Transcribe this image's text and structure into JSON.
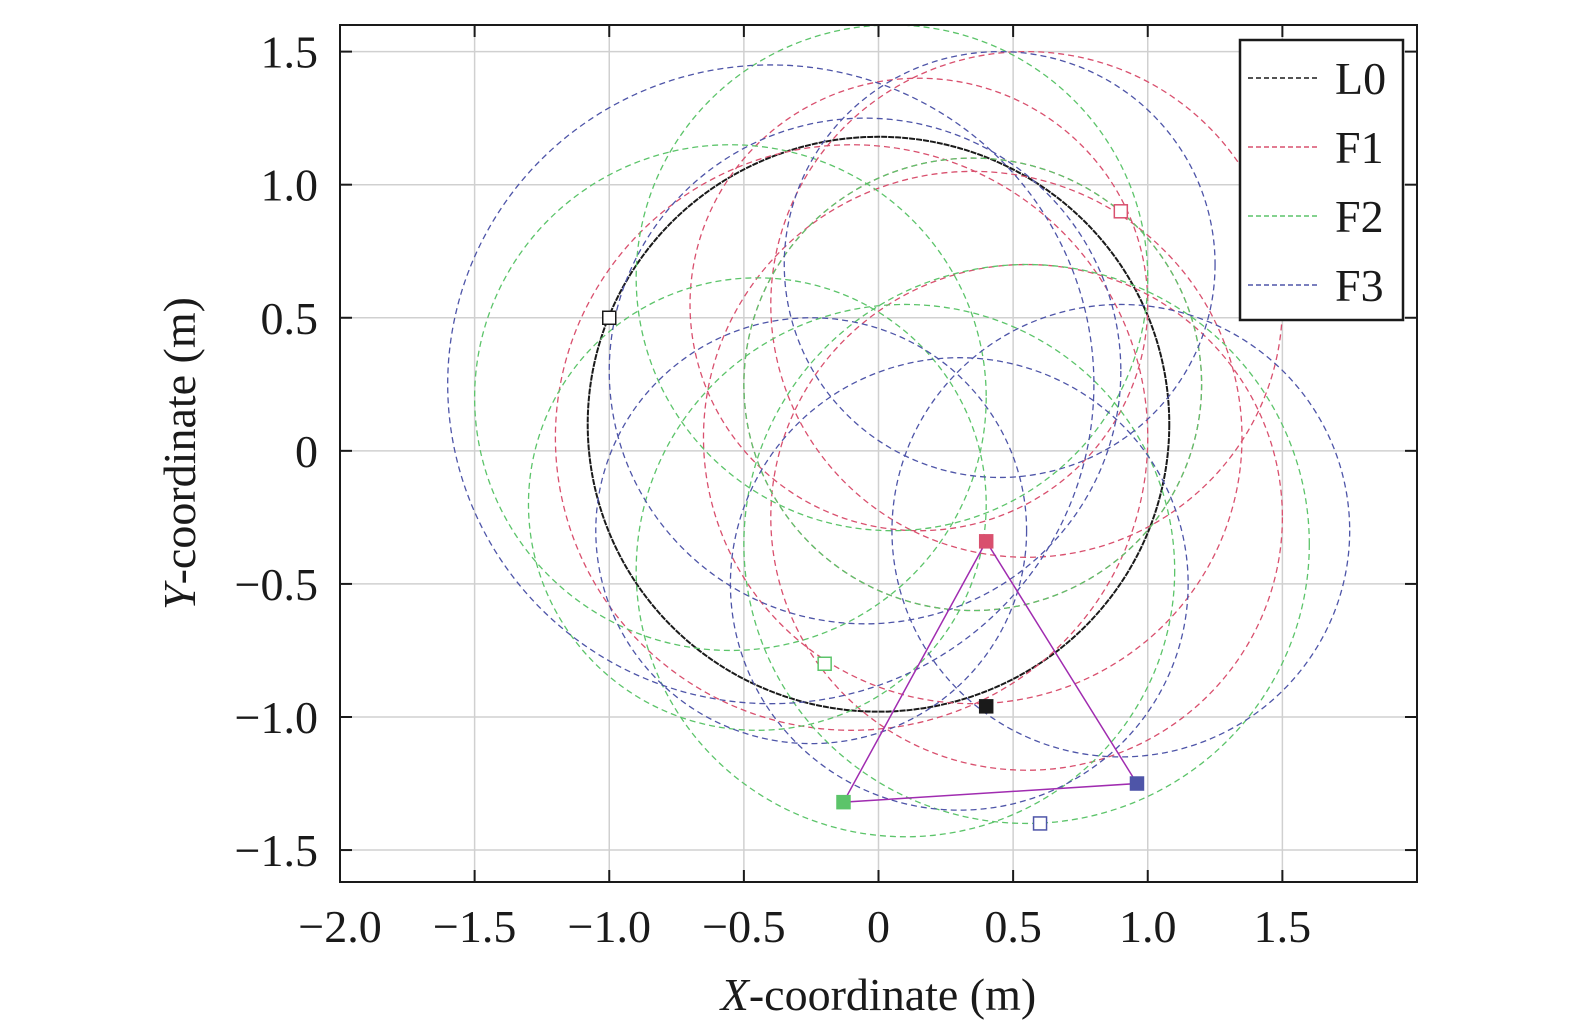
{
  "chart_data": {
    "type": "line",
    "title": "",
    "xlabel": {
      "italic": "X",
      "rest": "-coordinate (m)"
    },
    "ylabel": {
      "italic": "Y",
      "rest": "-coordinate (m)"
    },
    "xlim": [
      -2.0,
      2.0
    ],
    "ylim": [
      -1.62,
      1.6
    ],
    "x_ticks": [
      -2.0,
      -1.5,
      -1.0,
      -0.5,
      0,
      0.5,
      1.0,
      1.5
    ],
    "y_ticks": [
      -1.5,
      -1.0,
      -0.5,
      0,
      0.5,
      1.0,
      1.5
    ],
    "x_tick_labels": [
      "−2.0",
      "−1.5",
      "−1.0",
      "−0.5",
      "0",
      "0.5",
      "1.0",
      "1.5"
    ],
    "y_tick_labels": [
      "−1.5",
      "−1.0",
      "−0.5",
      "0",
      "0.5",
      "1.0",
      "1.5"
    ],
    "grid": true,
    "legend_position": "top-right",
    "colors": {
      "L0": "#1a1a1a",
      "F1": "#d9506e",
      "F2": "#5cc46a",
      "F3": "#4e55a8",
      "formation": "#a02cb0"
    },
    "series": [
      {
        "name": "L0",
        "style": "solid-dashed",
        "curves": [
          {
            "center": [
              0.0,
              0.1
            ],
            "radius": 1.08,
            "aspect": 1.0
          }
        ],
        "start": [
          -1.0,
          0.5
        ],
        "end": [
          0.4,
          -0.96
        ]
      },
      {
        "name": "F1",
        "style": "dashed",
        "curves": [
          {
            "center": [
              0.55,
              0.55
            ],
            "r": 0.95
          },
          {
            "center": [
              0.35,
              0.05
            ],
            "r": 1.0
          },
          {
            "center": [
              0.15,
              0.55
            ],
            "r": 0.85
          },
          {
            "center": [
              0.55,
              -0.25
            ],
            "r": 0.95
          },
          {
            "center": [
              -0.1,
              0.05
            ],
            "r": 1.1
          },
          {
            "center": [
              0.35,
              0.25
            ],
            "r": 0.85
          }
        ],
        "start": [
          0.9,
          0.9
        ],
        "end": [
          0.4,
          -0.34
        ]
      },
      {
        "name": "F2",
        "style": "dashed",
        "curves": [
          {
            "center": [
              -0.55,
              0.2
            ],
            "r": 0.95
          },
          {
            "center": [
              0.05,
              0.65
            ],
            "r": 0.95
          },
          {
            "center": [
              -0.45,
              -0.2
            ],
            "r": 0.85
          },
          {
            "center": [
              0.55,
              -0.35
            ],
            "r": 1.05
          },
          {
            "center": [
              0.35,
              0.25
            ],
            "r": 0.85
          },
          {
            "center": [
              0.1,
              -0.45
            ],
            "r": 1.0
          }
        ],
        "start": [
          -0.2,
          -0.8
        ],
        "end": [
          -0.13,
          -1.32
        ]
      },
      {
        "name": "F3",
        "style": "dashed",
        "curves": [
          {
            "center": [
              -0.4,
              0.25
            ],
            "r": 1.2
          },
          {
            "center": [
              0.45,
              0.7
            ],
            "r": 0.8
          },
          {
            "center": [
              -0.05,
              0.3
            ],
            "r": 0.95
          },
          {
            "center": [
              0.9,
              -0.3
            ],
            "r": 0.85
          },
          {
            "center": [
              0.3,
              -0.5
            ],
            "r": 0.85
          },
          {
            "center": [
              -0.25,
              -0.3
            ],
            "r": 0.8
          }
        ],
        "start": [
          0.6,
          -1.4
        ],
        "end": [
          0.96,
          -1.25
        ]
      }
    ],
    "formation_triangle": [
      [
        0.4,
        -0.34
      ],
      [
        -0.13,
        -1.32
      ],
      [
        0.96,
        -1.25
      ]
    ]
  }
}
